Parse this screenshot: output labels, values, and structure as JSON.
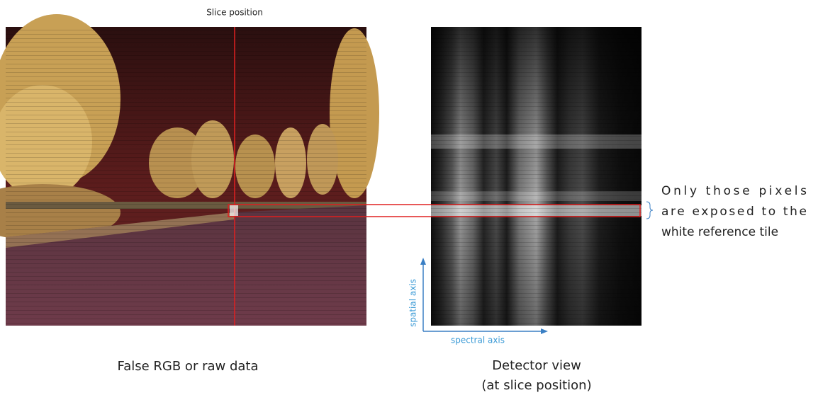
{
  "slice_label": "Slice position",
  "annotation": {
    "lines": [
      "Only those pixels",
      "are exposed to the",
      "white reference tile"
    ]
  },
  "axes": {
    "vertical": "spatial axis",
    "horizontal": "spectral axis"
  },
  "captions": {
    "left": "False RGB or raw data",
    "right": [
      "Detector view",
      "(at slice position)"
    ]
  }
}
